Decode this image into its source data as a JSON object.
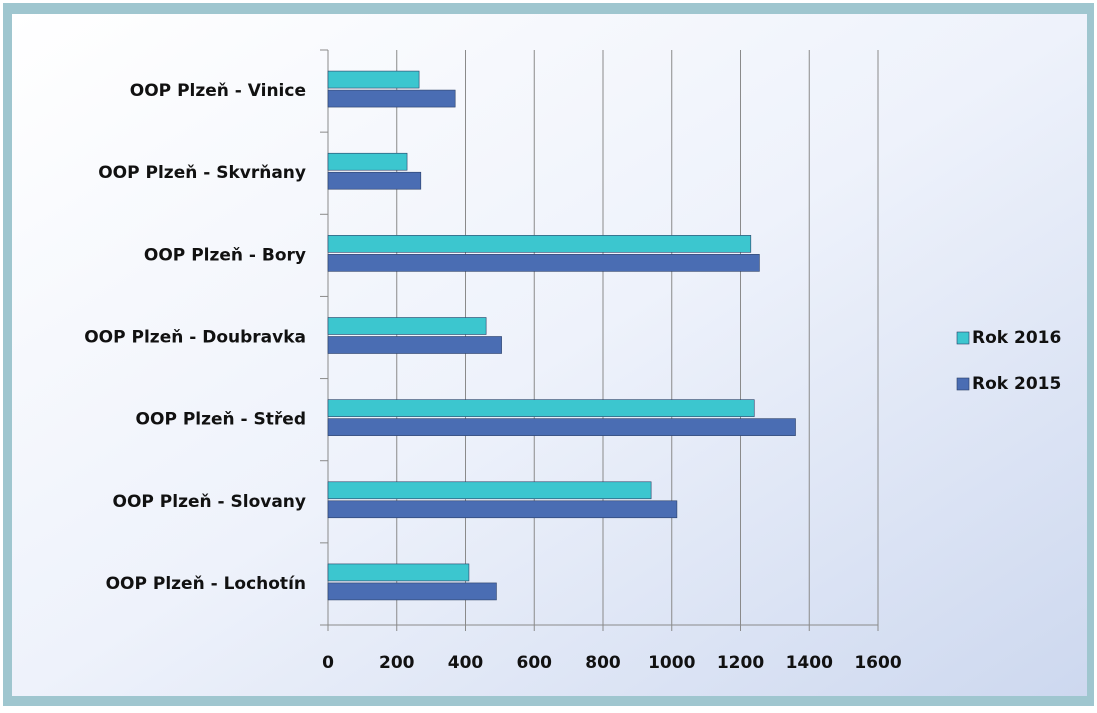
{
  "chart_data": {
    "type": "bar",
    "orientation": "horizontal",
    "categories": [
      "OOP Plzeň - Lochotín",
      "OOP Plzeň - Slovany",
      "OOP Plzeň - Střed",
      "OOP Plzeň - Doubravka",
      "OOP Plzeň - Bory",
      "OOP Plzeň - Skvrňany",
      "OOP Plzeň - Vinice"
    ],
    "series": [
      {
        "name": "Rok 2016",
        "color": "#3cc6cf",
        "values": [
          410,
          940,
          1240,
          460,
          1230,
          230,
          265
        ]
      },
      {
        "name": "Rok 2015",
        "color": "#4a6db3",
        "values": [
          490,
          1015,
          1360,
          505,
          1255,
          270,
          370
        ]
      }
    ],
    "xlim": [
      0,
      1600
    ],
    "xticks": [
      0,
      200,
      400,
      600,
      800,
      1000,
      1200,
      1400,
      1600
    ],
    "grid": true,
    "legend": "right"
  }
}
